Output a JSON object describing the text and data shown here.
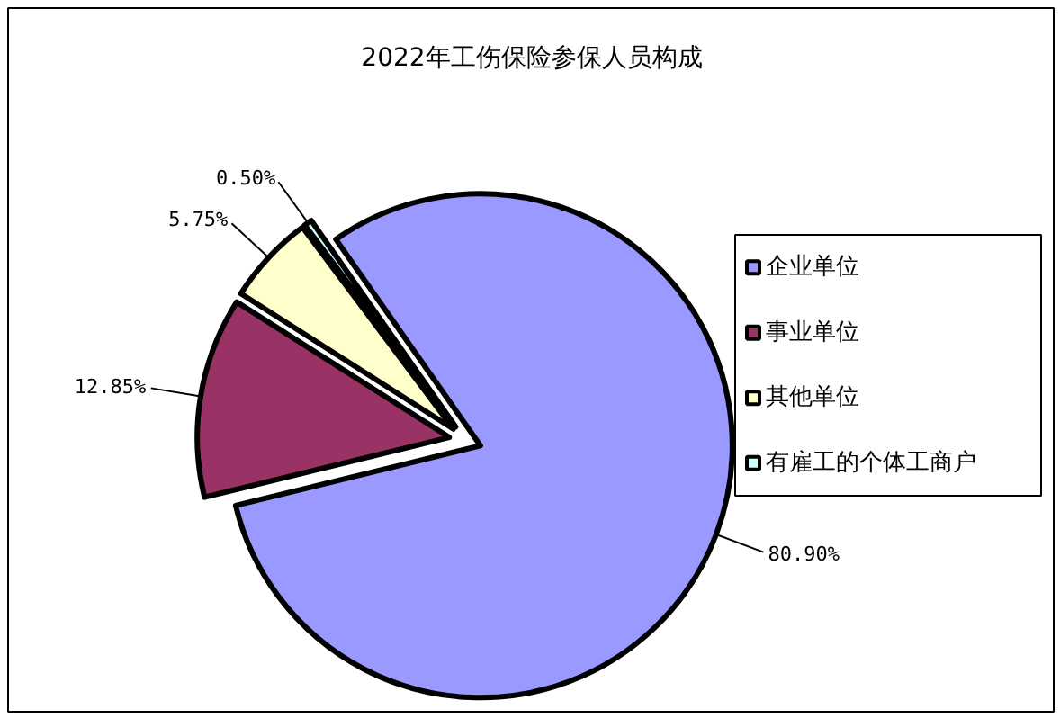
{
  "chart_data": {
    "type": "pie",
    "title": "2022年工伤保险参保人员构成",
    "categories": [
      "企业单位",
      "事业单位",
      "其他单位",
      "有雇工的个体工商户"
    ],
    "values": [
      80.9,
      12.85,
      5.75,
      0.5
    ],
    "value_labels": [
      "80.90%",
      "12.85%",
      "5.75%",
      "0.50%"
    ],
    "colors": [
      "#9999ff",
      "#993366",
      "#ffffcc",
      "#ccffff"
    ],
    "legend": "right"
  }
}
